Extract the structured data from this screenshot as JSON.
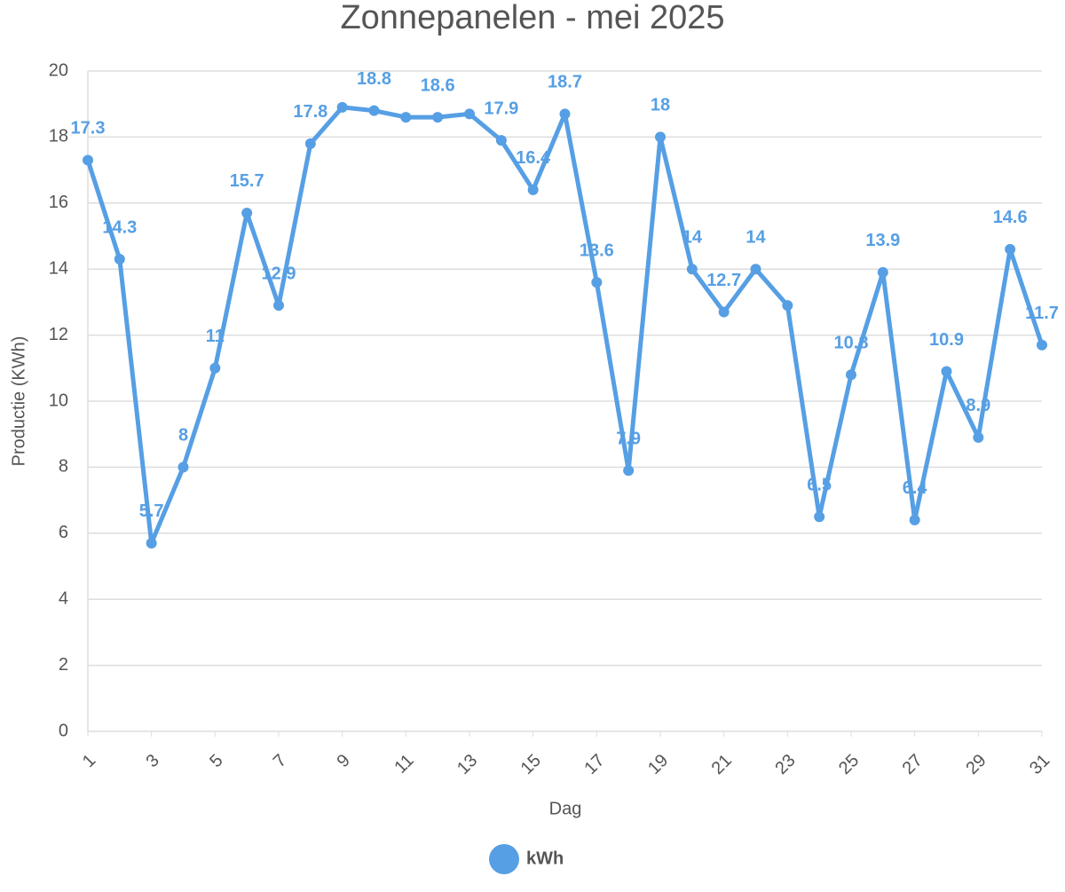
{
  "chart_data": {
    "type": "line",
    "title": "Zonnepanelen - mei 2025",
    "x_label": "Dag",
    "y_label": "Productie (KWh)",
    "x": [
      1,
      2,
      3,
      4,
      5,
      6,
      7,
      8,
      9,
      10,
      11,
      12,
      13,
      14,
      15,
      16,
      17,
      18,
      19,
      20,
      21,
      22,
      23,
      24,
      25,
      26,
      27,
      28,
      29,
      30,
      31
    ],
    "series": [
      {
        "name": "kWh",
        "color": "#569fe4",
        "values": [
          17.3,
          14.3,
          5.7,
          8,
          11,
          15.7,
          12.9,
          17.8,
          18.9,
          18.8,
          18.6,
          18.6,
          18.7,
          17.9,
          16.4,
          18.7,
          13.6,
          7.9,
          18,
          14,
          12.7,
          14,
          12.9,
          6.5,
          10.8,
          13.9,
          6.4,
          10.9,
          8.9,
          14.6,
          11.7
        ],
        "value_labels": [
          "17.3",
          "14.3",
          "5.7",
          "8",
          "11",
          "15.7",
          "12.9",
          "17.8",
          null,
          "18.8",
          null,
          "18.6",
          null,
          "17.9",
          "16.4",
          "18.7",
          "13.6",
          "7.9",
          "18",
          "14",
          "12.7",
          "14",
          null,
          "6.5",
          "10.8",
          "13.9",
          "6.4",
          "10.9",
          "8.9",
          "14.6",
          "11.7"
        ]
      }
    ],
    "xlim": [
      1,
      31
    ],
    "xticks": [
      1,
      3,
      5,
      7,
      9,
      11,
      13,
      15,
      17,
      19,
      21,
      23,
      25,
      27,
      29,
      31
    ],
    "ylim": [
      0,
      20
    ],
    "yticks": [
      0,
      2,
      4,
      6,
      8,
      10,
      12,
      14,
      16,
      18,
      20
    ],
    "grid": true,
    "legend": "bottom"
  }
}
